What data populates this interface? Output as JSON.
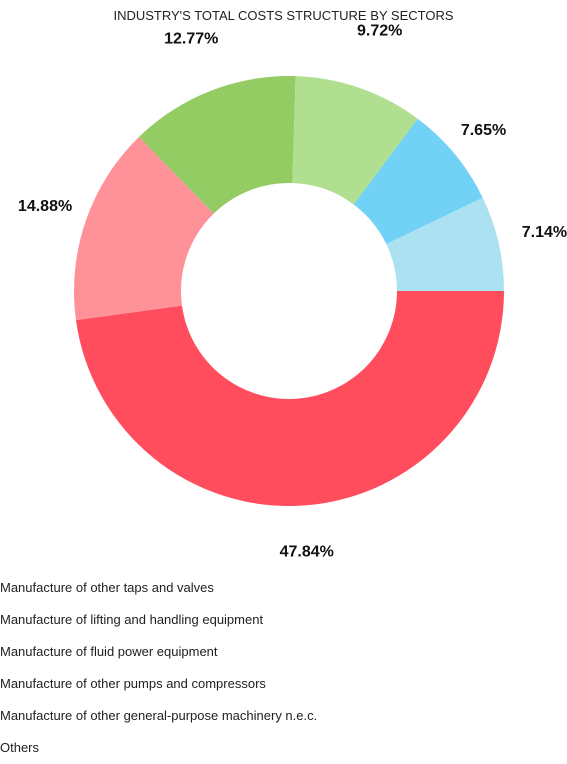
{
  "chart_data": {
    "type": "pie",
    "title": "INDUSTRY'S TOTAL COSTS STRUCTURE BY SECTORS",
    "donut": true,
    "slices": [
      {
        "label": "Manufacture of other taps and valves",
        "value": 47.84,
        "display": "47.84%",
        "color": "#ff4d5e"
      },
      {
        "label": "Manufacture of lifting and handling equipment",
        "value": 14.88,
        "display": "14.88%",
        "color": "#ff9198"
      },
      {
        "label": "Manufacture of fluid power equipment",
        "value": 12.77,
        "display": "12.77%",
        "color": "#93cc62"
      },
      {
        "label": "Manufacture of other pumps and compressors",
        "value": 9.72,
        "display": "9.72%",
        "color": "#b0df90"
      },
      {
        "label": "Manufacture of other general-purpose machinery n.e.c.",
        "value": 7.65,
        "display": "7.65%",
        "color": "#72d2f5"
      },
      {
        "label": "Others",
        "value": 7.14,
        "display": "7.14%",
        "color": "#ace1f2"
      }
    ],
    "legend_placement": "bottom"
  }
}
